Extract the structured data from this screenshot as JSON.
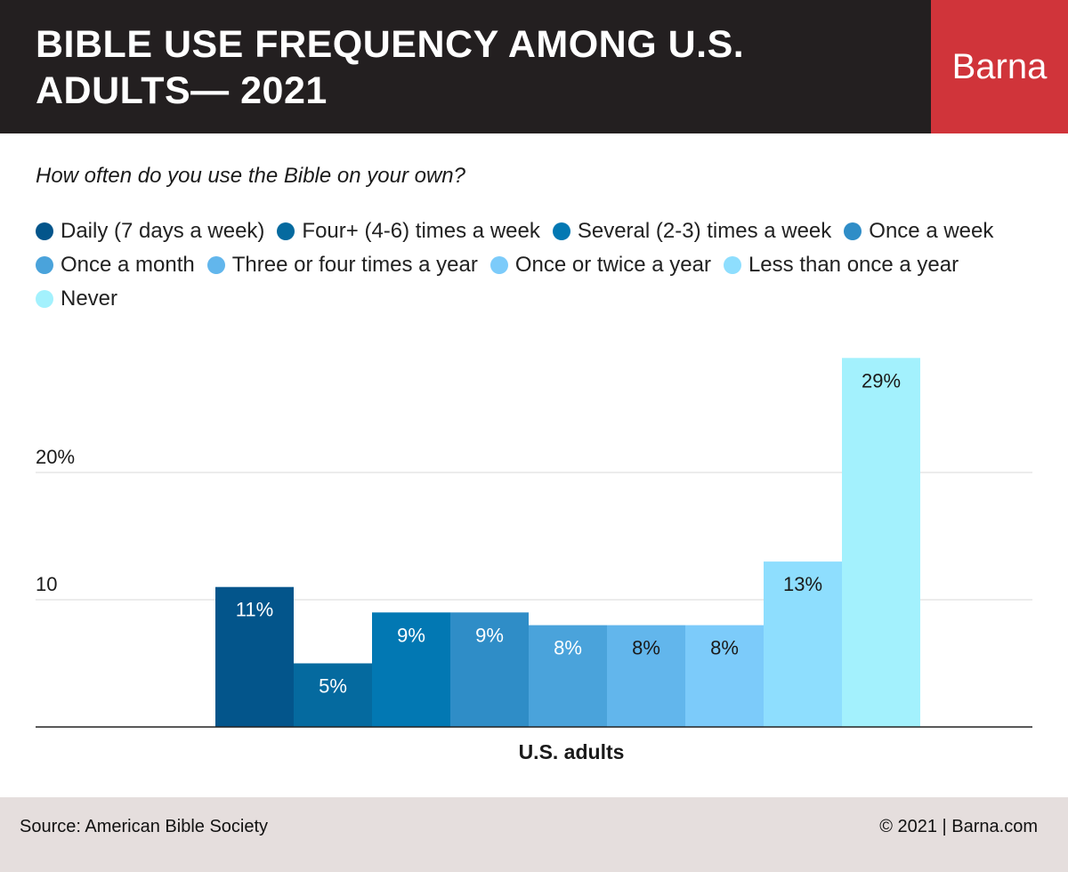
{
  "header": {
    "title": "BIBLE USE FREQUENCY AMONG U.S. ADULTS— 2021",
    "brand": "Barna"
  },
  "question": "How often do you use the Bible on your own?",
  "footer": {
    "source": "Source: American Bible Society",
    "copyright": "© 2021 |   Barna.com"
  },
  "chart_data": {
    "type": "bar",
    "title": "BIBLE USE FREQUENCY AMONG U.S. ADULTS— 2021",
    "subtitle": "How often do you use the Bible on your own?",
    "xlabel": "U.S. adults",
    "ylabel": "",
    "ylim": [
      0,
      29
    ],
    "grid": true,
    "legend_position": "top",
    "yticks": [
      {
        "value": 10,
        "label": "10"
      },
      {
        "value": 20,
        "label": "20%"
      }
    ],
    "categories": [
      "U.S. adults"
    ],
    "series": [
      {
        "name": "Daily (7 days a week)",
        "values": [
          11
        ],
        "label": "11%",
        "color": "#03558b",
        "label_color": "#ffffff"
      },
      {
        "name": "Four+ (4-6) times a week",
        "values": [
          5
        ],
        "label": "5%",
        "color": "#056a9f",
        "label_color": "#ffffff"
      },
      {
        "name": "Several (2-3) times a week",
        "values": [
          9
        ],
        "label": "9%",
        "color": "#0278b3",
        "label_color": "#ffffff"
      },
      {
        "name": "Once a week",
        "values": [
          9
        ],
        "label": "9%",
        "color": "#2f8dc7",
        "label_color": "#ffffff"
      },
      {
        "name": "Once a month",
        "values": [
          8
        ],
        "label": "8%",
        "color": "#4aa3db",
        "label_color": "#ffffff"
      },
      {
        "name": "Three or four times a year",
        "values": [
          8
        ],
        "label": "8%",
        "color": "#62b6ec",
        "label_color": "#1a1a1a"
      },
      {
        "name": "Once or twice a year",
        "values": [
          8
        ],
        "label": "8%",
        "color": "#7ccbfa",
        "label_color": "#1a1a1a"
      },
      {
        "name": "Less than once a year",
        "values": [
          13
        ],
        "label": "13%",
        "color": "#8edefe",
        "label_color": "#1a1a1a"
      },
      {
        "name": "Never",
        "values": [
          29
        ],
        "label": "29%",
        "color": "#a3f1fd",
        "label_color": "#1a1a1a"
      }
    ]
  }
}
